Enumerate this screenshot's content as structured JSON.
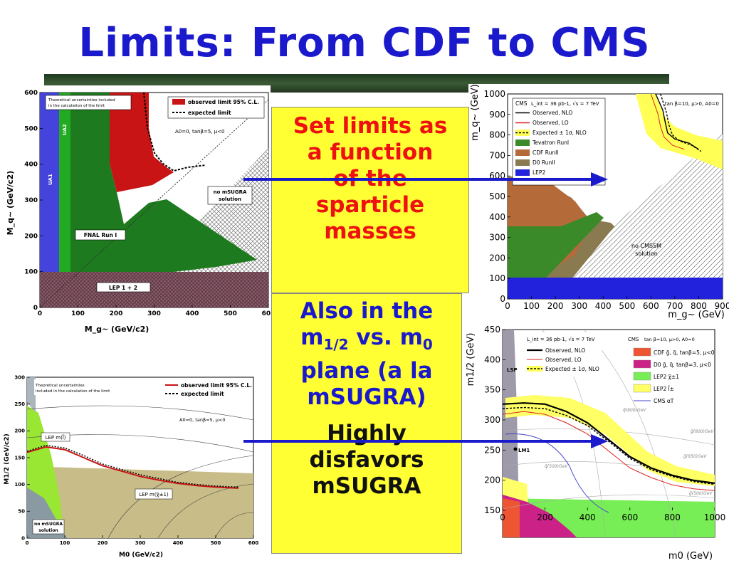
{
  "slide": {
    "title": "Limits: From CDF to CMS",
    "box1": {
      "lines": [
        "Set limits as",
        "a function",
        "of the",
        "sparticle",
        "masses"
      ]
    },
    "box2": {
      "line1": "Also in the",
      "m": "m",
      "sub12": "1/2",
      "vs": " vs. m",
      "sub0": "0",
      "line3": "plane (a la",
      "line4": "mSUGRA)"
    },
    "box3": {
      "lines": [
        "Highly",
        "disfavors",
        "mSUGRA"
      ]
    },
    "colors": {
      "title": "#1a1acc",
      "box_bg": "#ffff33",
      "box1_text": "#ee1111",
      "box2_text": "#1a1acc",
      "arrow": "#1a1acc"
    }
  },
  "chart_data": [
    {
      "type": "area",
      "panel": "CDF squark-gluino",
      "xlabel": "M_g~ (GeV/c2)",
      "ylabel": "M_q~ (GeV/c2)",
      "x_ticks": [
        "0",
        "100",
        "200",
        "300",
        "400",
        "500",
        "600"
      ],
      "y_ticks": [
        "0",
        "100",
        "200",
        "300",
        "400",
        "500",
        "600"
      ],
      "xlim": [
        0,
        600
      ],
      "ylim": [
        0,
        600
      ],
      "legend": [
        "observed limit 95% C.L.",
        "expected limit"
      ],
      "annotations": [
        "Theoretical uncertainties included",
        "in the calculation of the limit",
        "A0=0, tanβ=5, μ<0",
        "no mSUGRA",
        "solution",
        "FNAL Run I",
        "LEP 1 + 2",
        "UA1",
        "UA2"
      ],
      "series": [
        {
          "name": "observed limit 95% C.L.",
          "x": [
            195,
            195,
            210,
            240,
            260,
            280,
            290
          ],
          "y": [
            600,
            480,
            430,
            390,
            385,
            390,
            390
          ]
        },
        {
          "name": "expected limit",
          "x": [
            270,
            260,
            250,
            240,
            260,
            285,
            295
          ],
          "y": [
            600,
            520,
            470,
            390,
            390,
            395,
            400
          ]
        }
      ]
    },
    {
      "type": "line",
      "panel": "CMS squark-gluino",
      "xlabel": "m_g~ (GeV)",
      "ylabel": "m_q~ (GeV)",
      "x_ticks": [
        "0",
        "100",
        "200",
        "300",
        "400",
        "500",
        "600",
        "700",
        "800",
        "900"
      ],
      "y_ticks": [
        "0",
        "100",
        "200",
        "300",
        "400",
        "500",
        "600",
        "700",
        "800",
        "900",
        "1000"
      ],
      "xlim": [
        0,
        900
      ],
      "ylim": [
        0,
        1000
      ],
      "legend": [
        "Observed, NLO",
        "Observed, LO",
        "Expected ± 1σ, NLO",
        "Tevatron RunI",
        "CDF RunII",
        "D0 RunII",
        "LEP2"
      ],
      "annotations": [
        "CMS",
        "L_int = 36 pb-1, √s = 7 TeV",
        "tan β=10, μ>0, A0=0",
        "no CMSSM",
        "solution"
      ],
      "series": [
        {
          "name": "Observed, NLO",
          "x": [
            620,
            650,
            660,
            670,
            700,
            760,
            800
          ],
          "y": [
            1000,
            920,
            860,
            810,
            780,
            760,
            730
          ]
        },
        {
          "name": "Observed, LO",
          "x": [
            600,
            630,
            640,
            655,
            690,
            740
          ],
          "y": [
            1000,
            900,
            840,
            790,
            750,
            730
          ]
        },
        {
          "name": "Expected ± 1σ, NLO",
          "x": [
            640,
            665,
            675,
            690,
            720,
            770,
            810
          ],
          "y": [
            1000,
            910,
            850,
            800,
            770,
            750,
            720
          ]
        }
      ]
    },
    {
      "type": "area",
      "panel": "CDF m0-m1/2",
      "xlabel": "M0 (GeV/c2)",
      "ylabel": "M1/2 (GeV/c2)",
      "x_ticks": [
        "0",
        "100",
        "200",
        "300",
        "400",
        "500",
        "600"
      ],
      "y_ticks": [
        "0",
        "50",
        "100",
        "150",
        "200",
        "250",
        "300"
      ],
      "xlim": [
        0,
        600
      ],
      "ylim": [
        0,
        300
      ],
      "legend": [
        "observed limit 95% C.L.",
        "expected limit"
      ],
      "annotations": [
        "Theoretical uncertainties",
        "included in the calculation of the limit",
        "A0=0, tanβ=5, μ<0",
        "LEP m(χ̃±1)",
        "LEP m(l̃)",
        "no mSUGRA",
        "solution"
      ],
      "series": [
        {
          "name": "observed limit 95% C.L.",
          "x": [
            0,
            50,
            100,
            150,
            200,
            250,
            300,
            350,
            400,
            450,
            500,
            560
          ],
          "y": [
            160,
            170,
            165,
            150,
            135,
            125,
            115,
            108,
            102,
            98,
            95,
            93
          ]
        },
        {
          "name": "expected limit",
          "x": [
            0,
            50,
            100,
            150,
            200,
            250,
            300,
            350,
            400,
            450,
            500,
            560
          ],
          "y": [
            162,
            173,
            168,
            154,
            138,
            128,
            118,
            111,
            104,
            100,
            97,
            95
          ]
        }
      ]
    },
    {
      "type": "line",
      "panel": "CMS m0-m1/2",
      "xlabel": "m0 (GeV)",
      "ylabel": "m1/2 (GeV)",
      "x_ticks": [
        "0",
        "200",
        "400",
        "600",
        "800",
        "1000"
      ],
      "y_ticks": [
        "150",
        "200",
        "250",
        "300",
        "350",
        "400",
        "450"
      ],
      "xlim": [
        0,
        1000
      ],
      "ylim": [
        130,
        450
      ],
      "legend": [
        "Observed, NLO",
        "Observed, LO",
        "Expected ± 1σ, NLO",
        "CDF g̃, q̃, tanβ=5, μ<0",
        "D0 g̃, q̃, tanβ=3, μ<0",
        "LEP2 χ̃±1",
        "LEP2 l̃±",
        "CMS αT"
      ],
      "annotations": [
        "L_int = 36 pb-1, √s = 7 TeV",
        "CMS",
        "tan β=10, μ>0, A0=0",
        "LSP",
        "LM1",
        "q̃(800)GeV",
        "g̃(800)GeV",
        "g̃(650)GeV",
        "q̃(500)GeV",
        "g̃(500)GeV"
      ],
      "series": [
        {
          "name": "Observed, NLO",
          "x": [
            0,
            100,
            200,
            300,
            400,
            500,
            600,
            700,
            800,
            900,
            1000
          ],
          "y": [
            318,
            320,
            318,
            305,
            285,
            255,
            225,
            205,
            192,
            183,
            178
          ]
        },
        {
          "name": "Observed, LO",
          "x": [
            0,
            100,
            200,
            300,
            400,
            500,
            600,
            700,
            800,
            900,
            1000
          ],
          "y": [
            300,
            305,
            300,
            285,
            265,
            235,
            205,
            188,
            175,
            168,
            165
          ]
        },
        {
          "name": "Expected ± 1σ, NLO",
          "x": [
            0,
            100,
            200,
            300,
            400,
            500,
            600,
            700,
            800,
            900,
            1000
          ],
          "y": [
            310,
            312,
            310,
            298,
            280,
            252,
            222,
            202,
            190,
            181,
            176
          ]
        }
      ]
    }
  ]
}
